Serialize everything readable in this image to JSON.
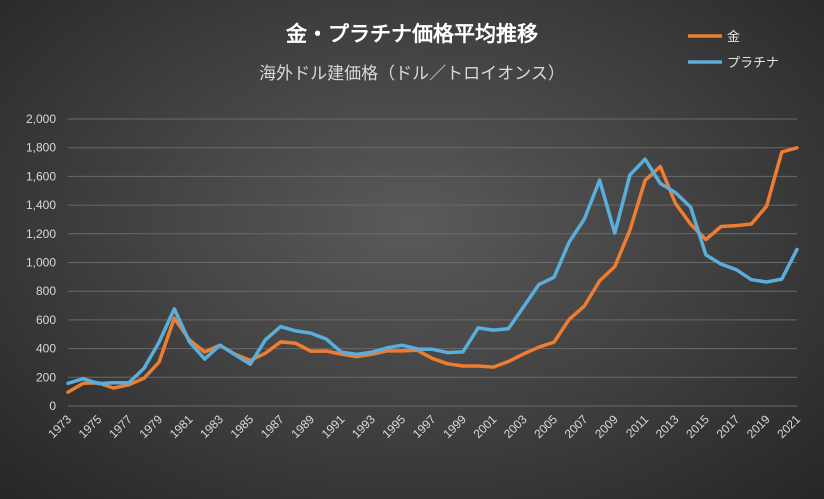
{
  "chart_data": {
    "type": "line",
    "title": "金・プラチナ価格平均推移",
    "subtitle": "海外ドル建価格（ドル／トロイオンス）",
    "xlabel": "",
    "ylabel": "",
    "x": [
      1973,
      1974,
      1975,
      1976,
      1977,
      1978,
      1979,
      1980,
      1981,
      1982,
      1983,
      1984,
      1985,
      1986,
      1987,
      1988,
      1989,
      1990,
      1991,
      1992,
      1993,
      1994,
      1995,
      1996,
      1997,
      1998,
      1999,
      2000,
      2001,
      2002,
      2003,
      2004,
      2005,
      2006,
      2007,
      2008,
      2009,
      2010,
      2011,
      2012,
      2013,
      2014,
      2015,
      2016,
      2017,
      2018,
      2019,
      2020,
      2021
    ],
    "x_tick_labels": [
      "1973",
      "1975",
      "1977",
      "1979",
      "1981",
      "1983",
      "1985",
      "1987",
      "1989",
      "1991",
      "1993",
      "1995",
      "1997",
      "1999",
      "2001",
      "2003",
      "2005",
      "2007",
      "2009",
      "2011",
      "2013",
      "2015",
      "2017",
      "2019",
      "2021"
    ],
    "ylim": [
      0,
      2000
    ],
    "y_tick_labels": [
      "0",
      "200",
      "400",
      "600",
      "800",
      "1,000",
      "1,200",
      "1,400",
      "1,600",
      "1,800",
      "2,000"
    ],
    "grid": true,
    "legend_position": "top-right",
    "series": [
      {
        "name": "金",
        "color": "#ed7d31",
        "values": [
          97,
          159,
          161,
          125,
          148,
          193,
          306,
          612,
          460,
          376,
          424,
          361,
          317,
          368,
          447,
          437,
          381,
          383,
          362,
          344,
          360,
          384,
          384,
          388,
          331,
          294,
          279,
          279,
          271,
          310,
          363,
          410,
          445,
          604,
          697,
          872,
          972,
          1225,
          1572,
          1669,
          1411,
          1266,
          1160,
          1251,
          1257,
          1268,
          1393,
          1770,
          1799
        ]
      },
      {
        "name": "プラチナ",
        "color": "#5aaedc",
        "values": [
          158,
          190,
          156,
          162,
          162,
          261,
          445,
          677,
          446,
          327,
          424,
          357,
          291,
          461,
          553,
          523,
          507,
          467,
          375,
          360,
          375,
          405,
          424,
          397,
          395,
          372,
          377,
          544,
          529,
          539,
          691,
          846,
          897,
          1142,
          1303,
          1574,
          1205,
          1610,
          1720,
          1551,
          1487,
          1385,
          1053,
          989,
          950,
          880,
          864,
          884,
          1091
        ]
      }
    ]
  }
}
